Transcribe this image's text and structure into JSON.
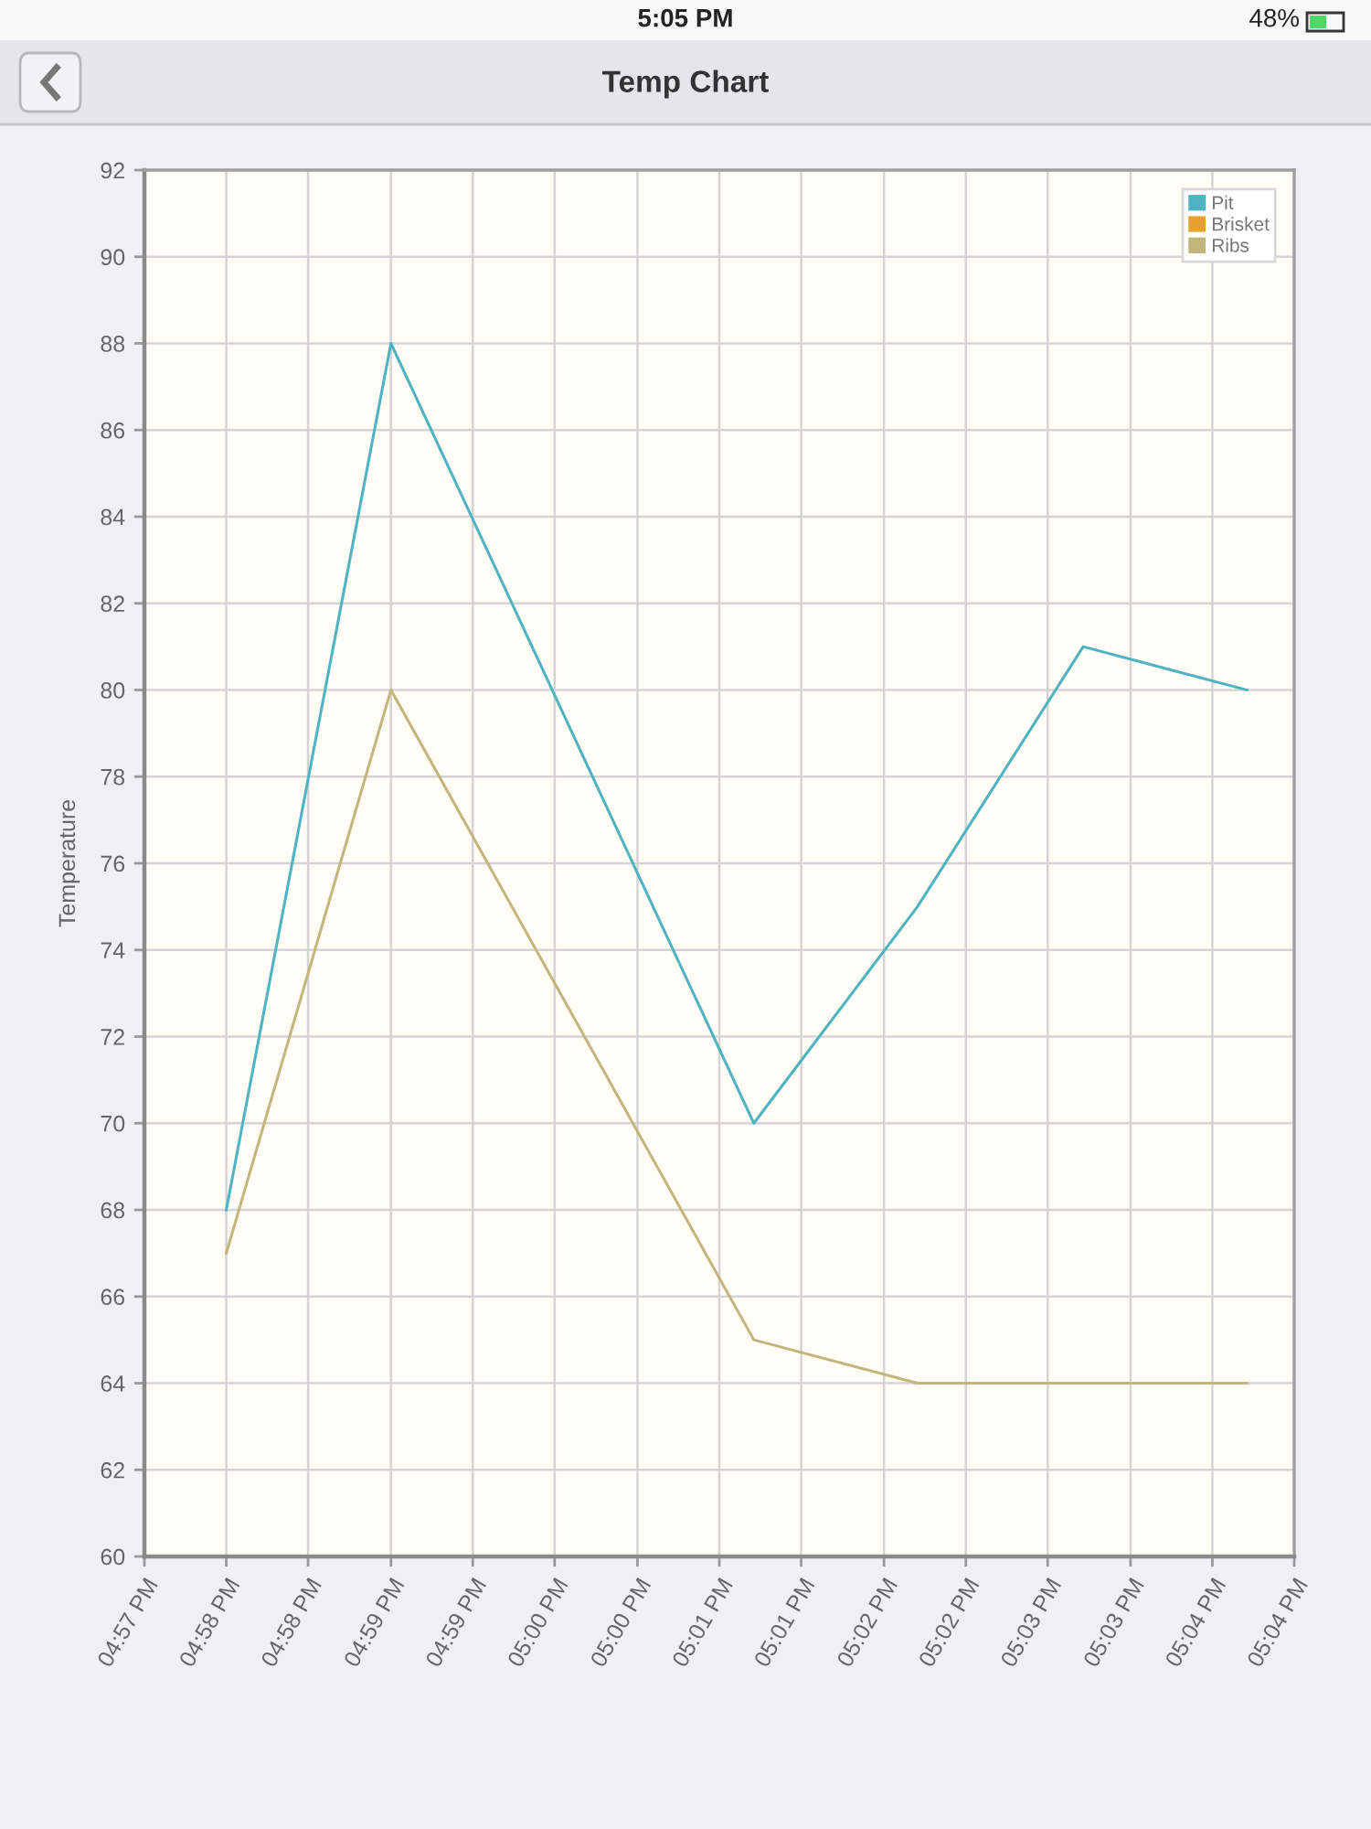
{
  "chart_data": {
    "type": "line",
    "title": "Temp Chart",
    "ylabel": "Temperature",
    "annotations": [
      "5:05 PM",
      "48%"
    ],
    "x": [
      16.9625,
      16.9792,
      17.016,
      17.0326,
      17.0494,
      17.066
    ],
    "series": [
      {
        "name": "Pit",
        "color": "#4fb3c2",
        "values": [
          68,
          88,
          70,
          75,
          81,
          80
        ]
      },
      {
        "name": "Brisket",
        "color": "#e6a22c",
        "values": [
          null,
          null,
          null,
          null,
          null,
          null
        ]
      },
      {
        "name": "Ribs",
        "color": "#c4b47e",
        "values": [
          67,
          80,
          65,
          64,
          64,
          64
        ]
      }
    ],
    "xlim": [
      16.9542,
      17.0708
    ],
    "xticks": [
      {
        "value": 16.9542,
        "label": "04:57 PM"
      },
      {
        "value": 16.9625,
        "label": "04:58 PM"
      },
      {
        "value": 16.9708,
        "label": "04:58 PM"
      },
      {
        "value": 16.9792,
        "label": "04:59 PM"
      },
      {
        "value": 16.9875,
        "label": "04:59 PM"
      },
      {
        "value": 16.9958,
        "label": "05:00 PM"
      },
      {
        "value": 17.0042,
        "label": "05:00 PM"
      },
      {
        "value": 17.0125,
        "label": "05:01 PM"
      },
      {
        "value": 17.0208,
        "label": "05:01 PM"
      },
      {
        "value": 17.0292,
        "label": "05:02 PM"
      },
      {
        "value": 17.0375,
        "label": "05:02 PM"
      },
      {
        "value": 17.0458,
        "label": "05:03 PM"
      },
      {
        "value": 17.0542,
        "label": "05:03 PM"
      },
      {
        "value": 17.0625,
        "label": "05:04 PM"
      },
      {
        "value": 17.0708,
        "label": "05:04 PM"
      }
    ],
    "ylim": [
      60,
      92
    ],
    "yticks": [
      60,
      62,
      64,
      66,
      68,
      70,
      72,
      74,
      76,
      78,
      80,
      82,
      84,
      86,
      88,
      90,
      92
    ],
    "grid": true,
    "legend": "top right",
    "line_style": "solid"
  }
}
